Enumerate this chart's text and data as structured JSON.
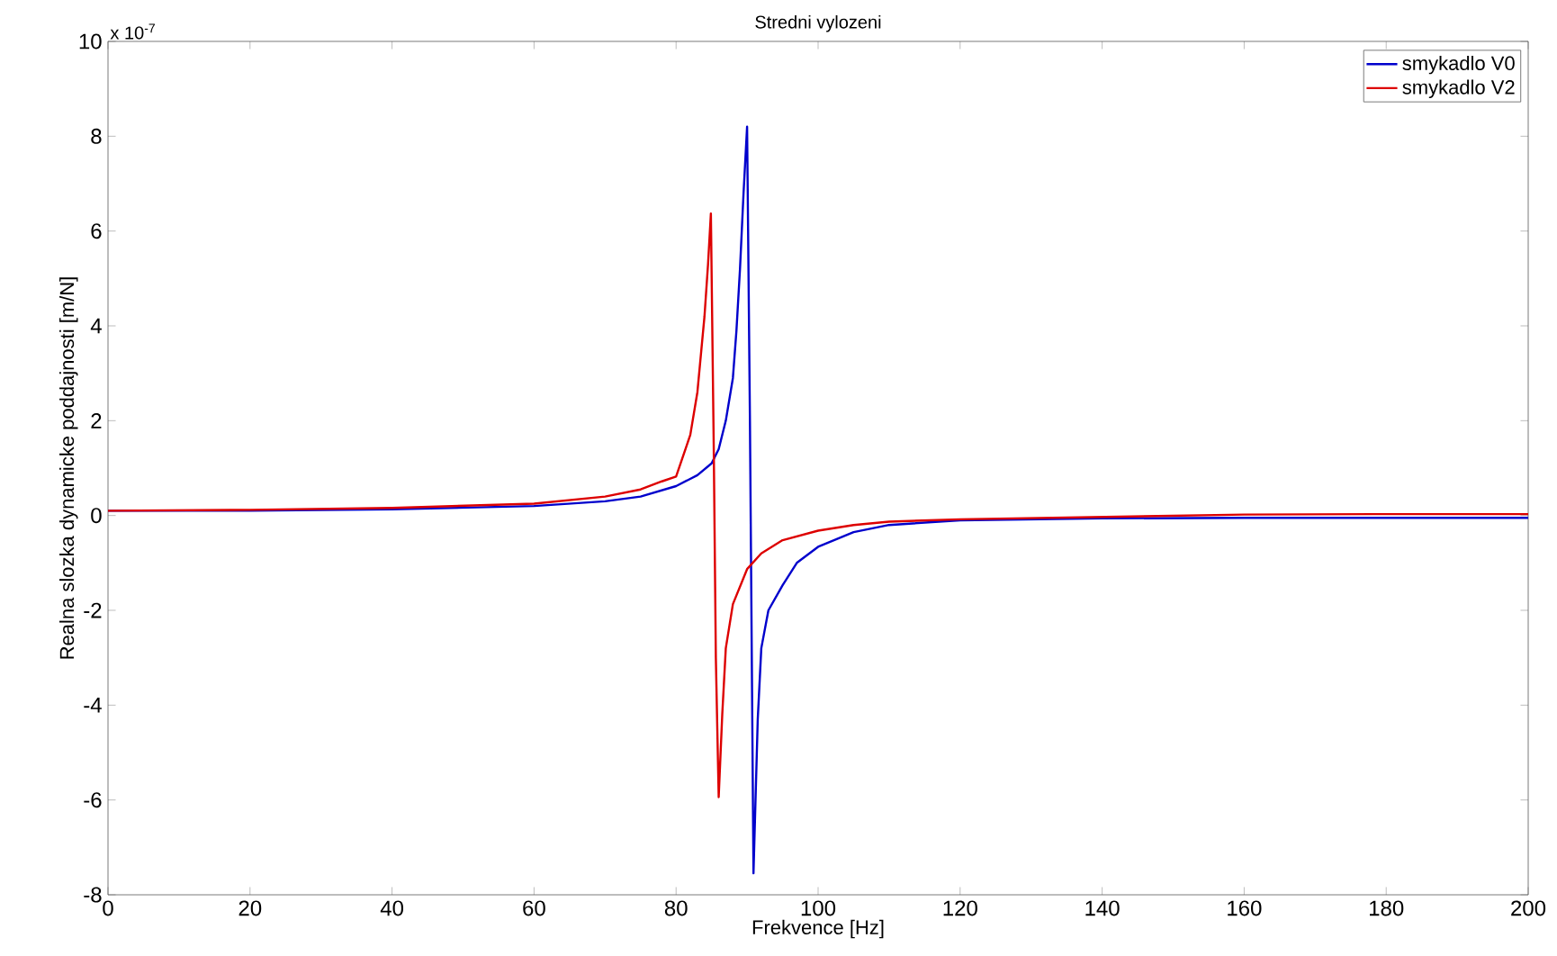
{
  "chart_data": {
    "type": "line",
    "title": "Stredni vylozeni",
    "xlabel": "Frekvence [Hz]",
    "ylabel": "Realna slozka dynamicke poddajnosti [m/N]",
    "annotations": [
      "x 10$^{-7}$"
    ],
    "xlim": [
      0,
      200
    ],
    "ylim": [
      -8,
      10
    ],
    "xticks": [
      0,
      20,
      40,
      60,
      80,
      100,
      120,
      140,
      160,
      180,
      200
    ],
    "yticks": [
      -8,
      -6,
      -4,
      -2,
      0,
      2,
      4,
      6,
      8,
      10
    ],
    "legend": "top right",
    "grid": false,
    "marker": "none",
    "line_style": "solid",
    "series": [
      {
        "name": "smykadlo V0",
        "color": "#0000cc",
        "x": [
          0,
          20,
          40,
          60,
          70,
          75,
          80,
          83,
          85,
          86,
          87,
          88,
          88.5,
          89,
          89.5,
          90,
          90.4,
          90.9,
          91.5,
          92,
          93,
          95,
          97,
          100,
          105,
          110,
          120,
          140,
          160,
          180,
          200
        ],
        "values": [
          0.1,
          0.1,
          0.13,
          0.2,
          0.3,
          0.4,
          0.62,
          0.85,
          1.1,
          1.4,
          2.0,
          2.9,
          3.9,
          5.2,
          6.8,
          8.2,
          2,
          -7.55,
          -4.3,
          -2.8,
          -2.0,
          -1.47,
          -1.0,
          -0.66,
          -0.35,
          -0.2,
          -0.1,
          -0.06,
          -0.05,
          -0.05,
          -0.05
        ]
      },
      {
        "name": "smykadlo V2",
        "color": "#dd0000",
        "x": [
          0,
          20,
          40,
          60,
          70,
          75,
          78,
          80,
          82,
          83,
          84,
          84.5,
          84.9,
          85.3,
          85.6,
          86.0,
          86.5,
          87,
          88,
          90,
          92,
          95,
          100,
          105,
          110,
          120,
          140,
          160,
          180,
          200
        ],
        "values": [
          0.1,
          0.12,
          0.16,
          0.25,
          0.4,
          0.55,
          0.72,
          0.82,
          1.7,
          2.6,
          4.2,
          5.3,
          6.37,
          1.5,
          -3,
          -5.94,
          -4.2,
          -2.8,
          -1.87,
          -1.13,
          -0.8,
          -0.52,
          -0.32,
          -0.2,
          -0.13,
          -0.08,
          -0.03,
          0.02,
          0.03,
          0.03
        ]
      }
    ]
  }
}
